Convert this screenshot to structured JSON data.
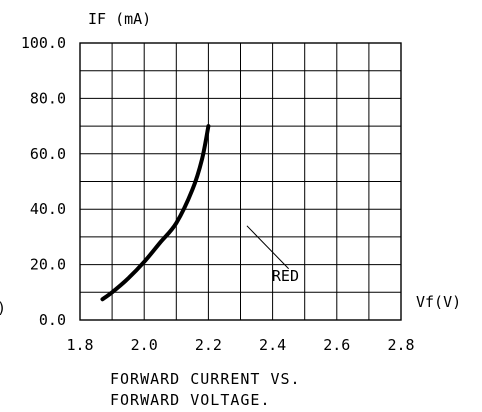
{
  "chart_data": {
    "type": "line",
    "ylabel": "IF (mA)",
    "xlabel": "Vf(V)",
    "caption_line1": "FORWARD CURRENT VS.",
    "caption_line2": "FORWARD VOLTAGE.",
    "edge_glyph": ")",
    "xlim": [
      1.8,
      2.8
    ],
    "ylim": [
      0,
      100
    ],
    "x_ticks": [
      1.8,
      2.0,
      2.2,
      2.4,
      2.6,
      2.8
    ],
    "x_tick_labels": [
      "1.8",
      "2.0",
      "2.2",
      "2.4",
      "2.6",
      "2.8"
    ],
    "y_ticks": [
      0,
      20,
      40,
      60,
      80,
      100
    ],
    "y_tick_labels": [
      "0.0",
      "20.0",
      "40.0",
      "60.0",
      "80.0",
      "100.0"
    ],
    "grid": true,
    "series": [
      {
        "name": "RED",
        "x": [
          1.87,
          1.9,
          1.95,
          2.0,
          2.05,
          2.1,
          2.15,
          2.18,
          2.2
        ],
        "y": [
          7.5,
          10,
          15,
          21,
          28,
          35,
          47,
          58,
          70
        ]
      }
    ],
    "annotation": {
      "text": "RED",
      "x1": 2.32,
      "y1": 34,
      "x2": 2.45,
      "y2": 18.5,
      "text_x": 2.44,
      "text_y": 14
    }
  }
}
